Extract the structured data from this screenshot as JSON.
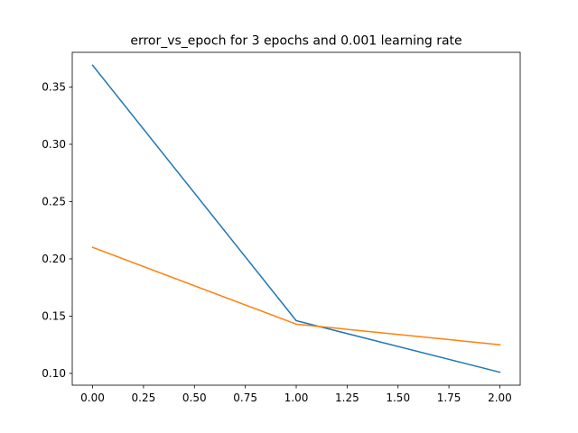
{
  "chart_data": {
    "type": "line",
    "title": "error_vs_epoch for 3 epochs and 0.001 learning rate",
    "xlabel": "",
    "ylabel": "",
    "x": [
      0,
      1,
      2
    ],
    "series": [
      {
        "values": [
          0.369,
          0.146,
          0.101
        ],
        "color": "#1f77b4"
      },
      {
        "values": [
          0.21,
          0.143,
          0.125
        ],
        "color": "#ff7f0e"
      }
    ],
    "xlim": [
      -0.1,
      2.1
    ],
    "ylim": [
      0.0897,
      0.3803
    ],
    "x_ticks": [
      0.0,
      0.25,
      0.5,
      0.75,
      1.0,
      1.25,
      1.5,
      1.75,
      2.0
    ],
    "x_tick_labels": [
      "0.00",
      "0.25",
      "0.50",
      "0.75",
      "1.00",
      "1.25",
      "1.50",
      "1.75",
      "2.00"
    ],
    "y_ticks": [
      0.1,
      0.15,
      0.2,
      0.25,
      0.3,
      0.35
    ],
    "y_tick_labels": [
      "0.10",
      "0.15",
      "0.20",
      "0.25",
      "0.30",
      "0.35"
    ],
    "grid": false,
    "legend": "none"
  }
}
